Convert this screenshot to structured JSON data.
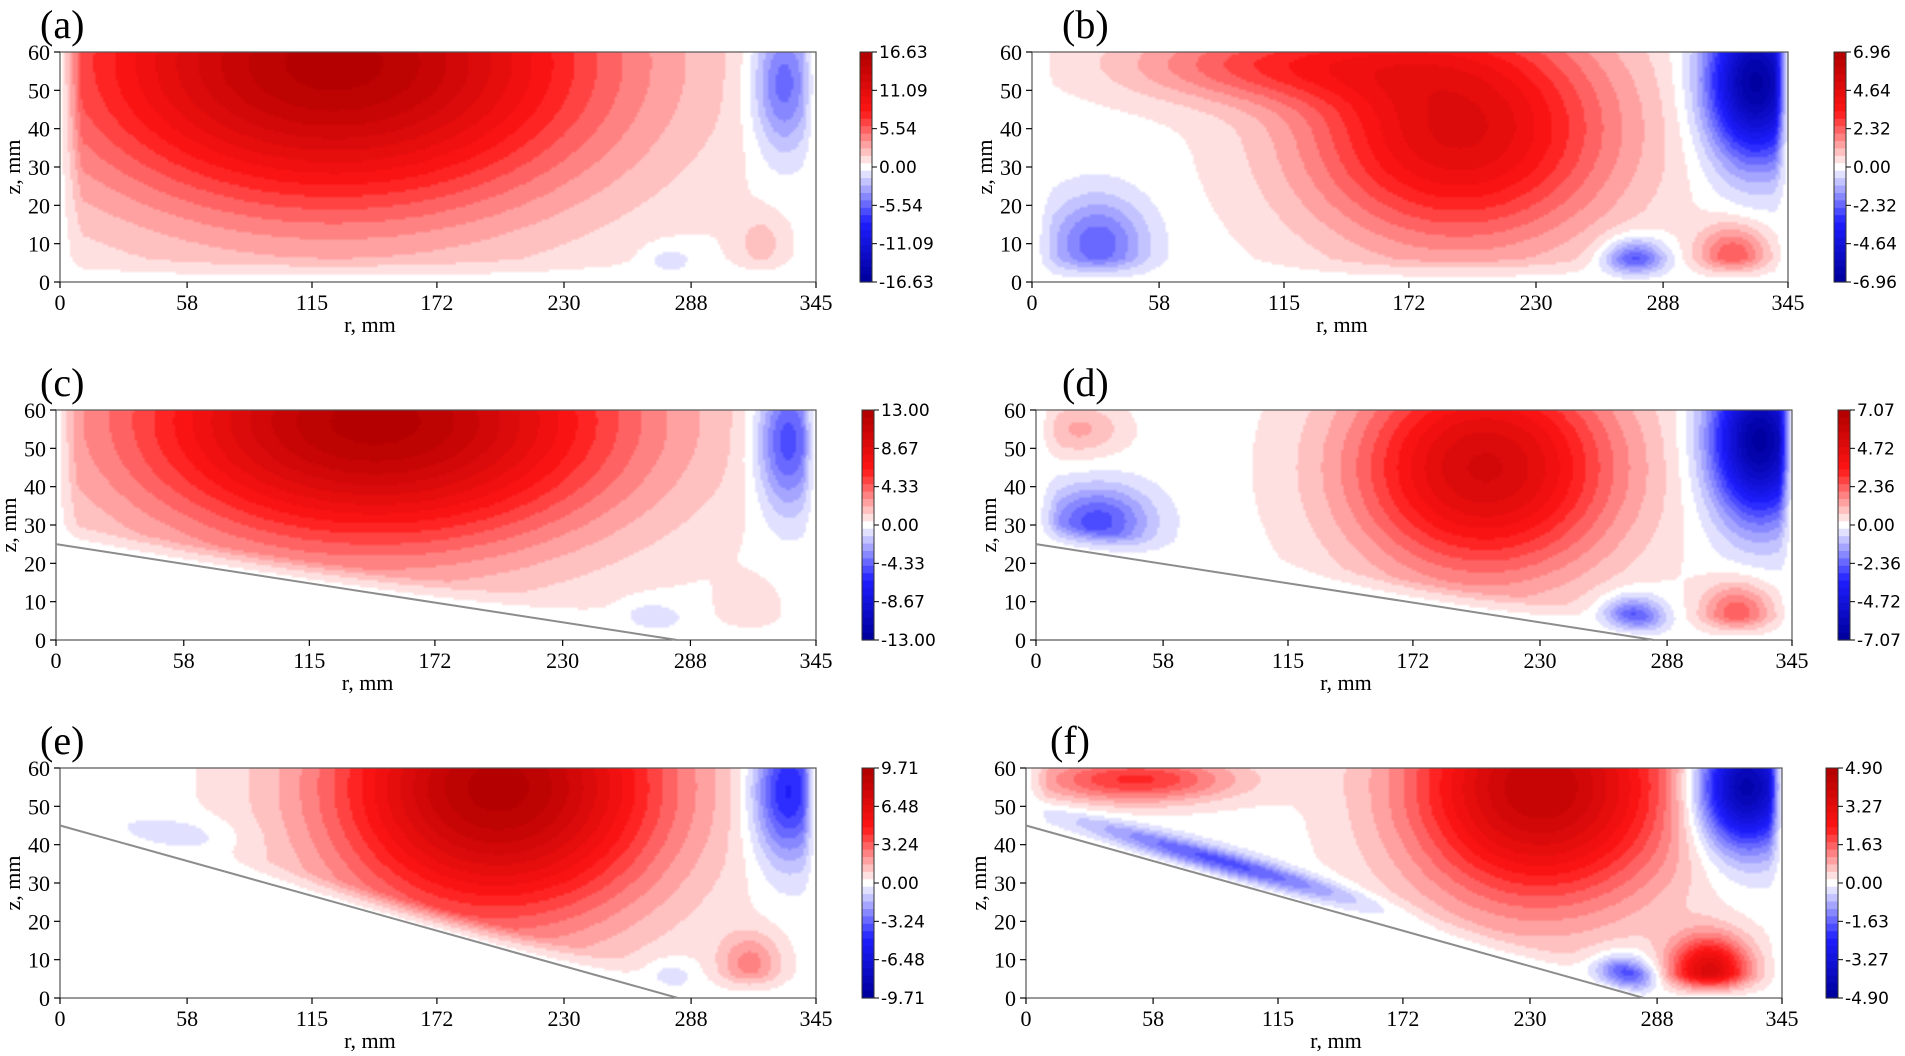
{
  "figure": {
    "colors": {
      "positive": "#b40000",
      "negative": "#0000a0",
      "zero": "#ffffff",
      "bottom_line": "#8c8c8c"
    }
  },
  "chart_data": [
    {
      "panel": "(a)",
      "type": "heatmap",
      "xlabel": "r, mm",
      "ylabel": "z, mm",
      "xlim": [
        0,
        345
      ],
      "ylim": [
        0,
        60
      ],
      "xticks": [
        "0",
        "58",
        "115",
        "172",
        "230",
        "288",
        "345"
      ],
      "yticks": [
        "0",
        "10",
        "20",
        "30",
        "40",
        "50",
        "60"
      ],
      "colorbar": {
        "min": -16.63,
        "max": 16.63,
        "ticks": [
          "16.63",
          "11.09",
          "5.54",
          "0.00",
          "-5.54",
          "-11.09",
          "-16.63"
        ]
      },
      "bottom_boundary": null,
      "features": [
        {
          "kind": "main-vortex",
          "sign": "positive",
          "r": 125,
          "z": 57,
          "sr": 120,
          "sz": 38,
          "amp": 1.0
        },
        {
          "kind": "outer-vortex",
          "sign": "negative",
          "r": 330,
          "z": 52,
          "sr": 14,
          "sz": 18,
          "amp": 0.38
        },
        {
          "kind": "corner-cell",
          "sign": "positive",
          "r": 320,
          "z": 10,
          "sr": 12,
          "sz": 8,
          "amp": 0.12
        },
        {
          "kind": "corner-cell",
          "sign": "negative",
          "r": 278,
          "z": 5,
          "sr": 12,
          "sz": 5,
          "amp": 0.1
        }
      ]
    },
    {
      "panel": "(b)",
      "type": "heatmap",
      "xlabel": "r, mm",
      "ylabel": "z, mm",
      "xlim": [
        0,
        345
      ],
      "ylim": [
        0,
        60
      ],
      "xticks": [
        "0",
        "58",
        "115",
        "172",
        "230",
        "288",
        "345"
      ],
      "yticks": [
        "0",
        "10",
        "20",
        "30",
        "40",
        "50",
        "60"
      ],
      "colorbar": {
        "min": -6.96,
        "max": 6.96,
        "ticks": [
          "6.96",
          "4.64",
          "2.32",
          "0.00",
          "-2.32",
          "-4.64",
          "-6.96"
        ]
      },
      "bottom_boundary": null,
      "features": [
        {
          "kind": "main-vortex",
          "sign": "positive",
          "r": 195,
          "z": 40,
          "sr": 70,
          "sz": 30,
          "amp": 0.72
        },
        {
          "kind": "upper-band",
          "sign": "positive",
          "r": 110,
          "z": 57,
          "sr": 70,
          "sz": 10,
          "amp": 0.35
        },
        {
          "kind": "outer-vortex",
          "sign": "negative",
          "r": 330,
          "z": 52,
          "sr": 22,
          "sz": 20,
          "amp": 1.0
        },
        {
          "kind": "inner-cell",
          "sign": "negative",
          "r": 30,
          "z": 10,
          "sr": 22,
          "sz": 12,
          "amp": 0.35
        },
        {
          "kind": "corner-cell",
          "sign": "negative",
          "r": 275,
          "z": 5,
          "sr": 14,
          "sz": 6,
          "amp": 0.45
        },
        {
          "kind": "corner-cell",
          "sign": "positive",
          "r": 320,
          "z": 7,
          "sr": 16,
          "sz": 8,
          "amp": 0.35
        }
      ]
    },
    {
      "panel": "(c)",
      "type": "heatmap",
      "xlabel": "r, mm",
      "ylabel": "z, mm",
      "xlim": [
        0,
        345
      ],
      "ylim": [
        0,
        60
      ],
      "xticks": [
        "0",
        "58",
        "115",
        "172",
        "230",
        "288",
        "345"
      ],
      "yticks": [
        "0",
        "10",
        "20",
        "30",
        "40",
        "50",
        "60"
      ],
      "colorbar": {
        "min": -13.0,
        "max": 13.0,
        "ticks": [
          "13.00",
          "8.67",
          "4.33",
          "0.00",
          "-4.33",
          "-8.67",
          "-13.00"
        ]
      },
      "bottom_boundary": {
        "r0": 0,
        "z0": 25,
        "r1": 282,
        "z1": 0
      },
      "features": [
        {
          "kind": "main-vortex",
          "sign": "positive",
          "r": 145,
          "z": 57,
          "sr": 110,
          "sz": 32,
          "amp": 1.0
        },
        {
          "kind": "outer-vortex",
          "sign": "negative",
          "r": 332,
          "z": 52,
          "sr": 14,
          "sz": 18,
          "amp": 0.45
        },
        {
          "kind": "corner-cell",
          "sign": "positive",
          "r": 315,
          "z": 8,
          "sr": 14,
          "sz": 8,
          "amp": 0.08
        },
        {
          "kind": "corner-cell",
          "sign": "negative",
          "r": 270,
          "z": 5,
          "sr": 14,
          "sz": 5,
          "amp": 0.12
        }
      ]
    },
    {
      "panel": "(d)",
      "type": "heatmap",
      "xlabel": "r, mm",
      "ylabel": "z, mm",
      "xlim": [
        0,
        345
      ],
      "ylim": [
        0,
        60
      ],
      "xticks": [
        "0",
        "58",
        "115",
        "172",
        "230",
        "288",
        "345"
      ],
      "yticks": [
        "0",
        "10",
        "20",
        "30",
        "40",
        "50",
        "60"
      ],
      "colorbar": {
        "min": -7.07,
        "max": 7.07,
        "ticks": [
          "7.07",
          "4.72",
          "2.36",
          "0.00",
          "-2.36",
          "-4.72",
          "-7.07"
        ]
      },
      "bottom_boundary": {
        "r0": 0,
        "z0": 25,
        "r1": 282,
        "z1": 0
      },
      "features": [
        {
          "kind": "main-vortex",
          "sign": "positive",
          "r": 205,
          "z": 45,
          "sr": 60,
          "sz": 28,
          "amp": 0.78
        },
        {
          "kind": "upper-band",
          "sign": "positive",
          "r": 20,
          "z": 55,
          "sr": 20,
          "sz": 7,
          "amp": 0.18
        },
        {
          "kind": "outer-vortex",
          "sign": "negative",
          "r": 330,
          "z": 52,
          "sr": 22,
          "sz": 20,
          "amp": 1.0
        },
        {
          "kind": "inner-cell",
          "sign": "negative",
          "r": 28,
          "z": 31,
          "sr": 24,
          "sz": 9,
          "amp": 0.4
        },
        {
          "kind": "corner-cell",
          "sign": "negative",
          "r": 272,
          "z": 5,
          "sr": 14,
          "sz": 6,
          "amp": 0.45
        },
        {
          "kind": "corner-cell",
          "sign": "positive",
          "r": 320,
          "z": 7,
          "sr": 16,
          "sz": 8,
          "amp": 0.35
        }
      ]
    },
    {
      "panel": "(e)",
      "type": "heatmap",
      "xlabel": "r, mm",
      "ylabel": "z, mm",
      "xlim": [
        0,
        345
      ],
      "ylim": [
        0,
        60
      ],
      "xticks": [
        "0",
        "58",
        "115",
        "172",
        "230",
        "288",
        "345"
      ],
      "yticks": [
        "0",
        "10",
        "20",
        "30",
        "40",
        "50",
        "60"
      ],
      "colorbar": {
        "min": -9.71,
        "max": 9.71,
        "ticks": [
          "9.71",
          "6.48",
          "3.24",
          "0.00",
          "-3.24",
          "-6.48",
          "-9.71"
        ]
      },
      "bottom_boundary": {
        "r0": 0,
        "z0": 45,
        "r1": 282,
        "z1": 0
      },
      "features": [
        {
          "kind": "main-vortex",
          "sign": "positive",
          "r": 200,
          "z": 55,
          "sr": 75,
          "sz": 34,
          "amp": 1.0
        },
        {
          "kind": "outer-vortex",
          "sign": "negative",
          "r": 332,
          "z": 54,
          "sr": 16,
          "sz": 18,
          "amp": 0.55
        },
        {
          "kind": "inner-cell",
          "sign": "negative",
          "r": 50,
          "z": 42,
          "sr": 30,
          "sz": 5,
          "amp": 0.1
        },
        {
          "kind": "corner-cell",
          "sign": "positive",
          "r": 315,
          "z": 9,
          "sr": 14,
          "sz": 8,
          "amp": 0.25
        },
        {
          "kind": "corner-cell",
          "sign": "negative",
          "r": 278,
          "z": 5,
          "sr": 12,
          "sz": 5,
          "amp": 0.12
        }
      ]
    },
    {
      "panel": "(f)",
      "type": "heatmap",
      "xlabel": "r, mm",
      "ylabel": "z, mm",
      "xlim": [
        0,
        345
      ],
      "ylim": [
        0,
        60
      ],
      "xticks": [
        "0",
        "58",
        "115",
        "172",
        "230",
        "288",
        "345"
      ],
      "yticks": [
        "0",
        "10",
        "20",
        "30",
        "40",
        "50",
        "60"
      ],
      "colorbar": {
        "min": -4.9,
        "max": 4.9,
        "ticks": [
          "4.90",
          "3.27",
          "1.63",
          "0.00",
          "-1.63",
          "-3.27",
          "-4.90"
        ]
      },
      "bottom_boundary": {
        "r0": 0,
        "z0": 45,
        "r1": 282,
        "z1": 0
      },
      "features": [
        {
          "kind": "main-vortex",
          "sign": "positive",
          "r": 235,
          "z": 55,
          "sr": 60,
          "sz": 30,
          "amp": 0.9
        },
        {
          "kind": "upper-band",
          "sign": "positive",
          "r": 50,
          "z": 57,
          "sr": 45,
          "sz": 6,
          "amp": 0.45
        },
        {
          "kind": "outer-vortex",
          "sign": "negative",
          "r": 328,
          "z": 55,
          "sr": 22,
          "sz": 16,
          "amp": 1.0
        },
        {
          "kind": "diagonal-band",
          "sign": "negative",
          "r": 90,
          "z": 34,
          "sr": 60,
          "sz": 4,
          "amp": 0.55,
          "slope": -0.16
        },
        {
          "kind": "corner-cell",
          "sign": "negative",
          "r": 272,
          "z": 4,
          "sr": 14,
          "sz": 6,
          "amp": 0.6
        },
        {
          "kind": "corner-cell",
          "sign": "positive",
          "r": 312,
          "z": 7,
          "sr": 18,
          "sz": 9,
          "amp": 0.72
        }
      ]
    }
  ]
}
